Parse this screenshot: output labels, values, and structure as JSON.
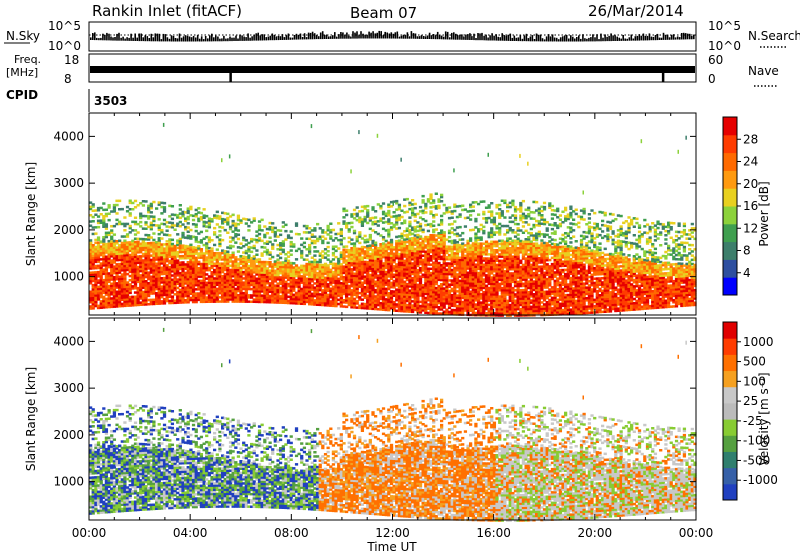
{
  "header": {
    "title": "Rankin Inlet (fitACF)",
    "beam": "Beam 07",
    "date": "26/Mar/2014"
  },
  "strips": {
    "nsky_label": "N.Sky",
    "nsearch_label": "N.Search",
    "nsky_ticks": [
      "10^5",
      "10^0"
    ],
    "nsearch_ticks": [
      "10^5",
      "10^0"
    ],
    "freq_label_1": "Freq.",
    "freq_label_2": "[MHz]",
    "freq_ticks": [
      "18",
      "8"
    ],
    "nave_label": "Nave",
    "nave_ticks": [
      "60",
      "0"
    ],
    "cpid_label": "CPID",
    "cpid_value": "3503"
  },
  "colors": {
    "power_scale": [
      "#0000ff",
      "#2e4fa0",
      "#3d7e6b",
      "#3f9f4f",
      "#8cd23b",
      "#e8d020",
      "#ff9a10",
      "#ff6a00",
      "#ff3c00",
      "#e60000"
    ],
    "velocity_scale": [
      "#2040c0",
      "#3660a8",
      "#2f7f6e",
      "#55a040",
      "#88cc33",
      "#bbbbbb",
      "#c8c8c8",
      "#f5a020",
      "#ff7000",
      "#ff3c00",
      "#e00000"
    ]
  },
  "chart_data": [
    {
      "type": "heatmap",
      "title": "Power",
      "ylabel": "Slant Range [km]",
      "xlabel": "",
      "ylim": [
        180,
        4500
      ],
      "xlim": [
        "00:00",
        "24:00"
      ],
      "x_ticks": [
        "00:00",
        "04:00",
        "08:00",
        "12:00",
        "16:00",
        "20:00",
        "00:00"
      ],
      "y_ticks": [
        "1000",
        "2000",
        "3000",
        "4000"
      ],
      "colorbar_label": "Power [dB]",
      "colorbar_ticks": [
        "28",
        "24",
        "20",
        "16",
        "12",
        "8",
        "4"
      ],
      "colorbar_range": [
        0,
        30
      ],
      "main_band_km": [
        400,
        1600
      ],
      "secondary_band_km": [
        1600,
        2600
      ]
    },
    {
      "type": "heatmap",
      "title": "Velocity",
      "ylabel": "Slant Range [km]",
      "xlabel": "Time UT",
      "ylim": [
        180,
        4500
      ],
      "xlim": [
        "00:00",
        "24:00"
      ],
      "x_ticks": [
        "00:00",
        "04:00",
        "08:00",
        "12:00",
        "16:00",
        "20:00",
        "00:00"
      ],
      "y_ticks": [
        "1000",
        "2000",
        "3000",
        "4000"
      ],
      "colorbar_label": "Velocity [m s⁻¹]",
      "colorbar_ticks": [
        "1000",
        "500",
        "100",
        "25",
        "-25",
        "-100",
        "-500",
        "-1000"
      ],
      "colorbar_range": [
        -1200,
        1200
      ]
    }
  ]
}
